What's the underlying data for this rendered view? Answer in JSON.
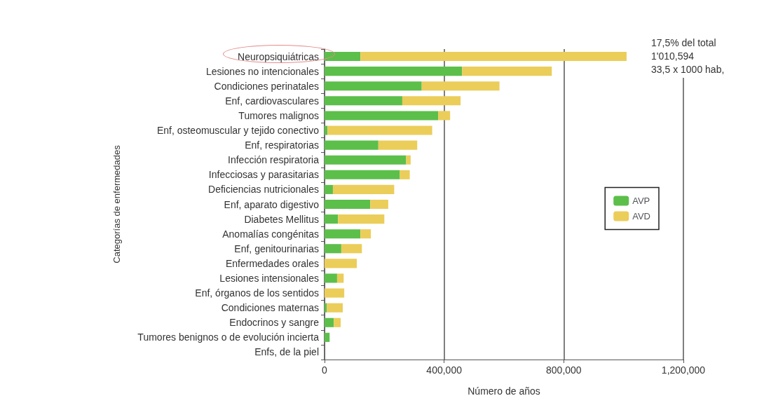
{
  "chart_data": {
    "type": "bar",
    "orientation": "horizontal",
    "stacked": true,
    "xlabel": "Número de años",
    "ylabel": "Categorías de enfermedades",
    "categories": [
      "Neuropsiquiátricas",
      "Lesiones no intencionales",
      "Condiciones perinatales",
      "Enf, cardiovasculares",
      "Tumores malignos",
      "Enf, osteomuscular y tejido conectivo",
      "Enf, respiratorias",
      "Infección respiratoria",
      "Infecciosas y parasitarias",
      "Deficiencias nutricionales",
      "Enf, aparato digestivo",
      "Diabetes Mellitus",
      "Anomalías congénitas",
      "Enf, genitourinarias",
      "Enfermedades orales",
      "Lesiones intensionales",
      "Enf, órganos de los sentidos",
      "Condiciones maternas",
      "Endocrinos y sangre",
      "Tumores benignos o de evolución incierta",
      "Enfs, de la piel"
    ],
    "series": [
      {
        "name": "AVP",
        "color": "#5cbf4a",
        "values": [
          120000,
          460000,
          325000,
          260000,
          380000,
          10000,
          180000,
          273000,
          252000,
          28000,
          153000,
          45000,
          120000,
          56000,
          0,
          42000,
          0,
          8000,
          31000,
          17000,
          0
        ]
      },
      {
        "name": "AVD",
        "color": "#ebcd5a",
        "values": [
          890000,
          300000,
          260000,
          195000,
          40000,
          350000,
          130000,
          15000,
          33000,
          205000,
          60000,
          155000,
          35000,
          69000,
          108000,
          22000,
          66000,
          53000,
          23000,
          0,
          0
        ]
      }
    ],
    "xlim": [
      0,
      1200000
    ],
    "xticks": [
      0,
      {
        "value": 400000,
        "label": "400,000"
      },
      {
        "value": 800000,
        "label": "800,000"
      },
      {
        "value": 1200000,
        "label": "1,200,000"
      }
    ],
    "grid": "x",
    "legend": "right",
    "annotations": [
      "17,5% del total",
      "1'010,594",
      "33,5 x 1000 hab,"
    ]
  }
}
